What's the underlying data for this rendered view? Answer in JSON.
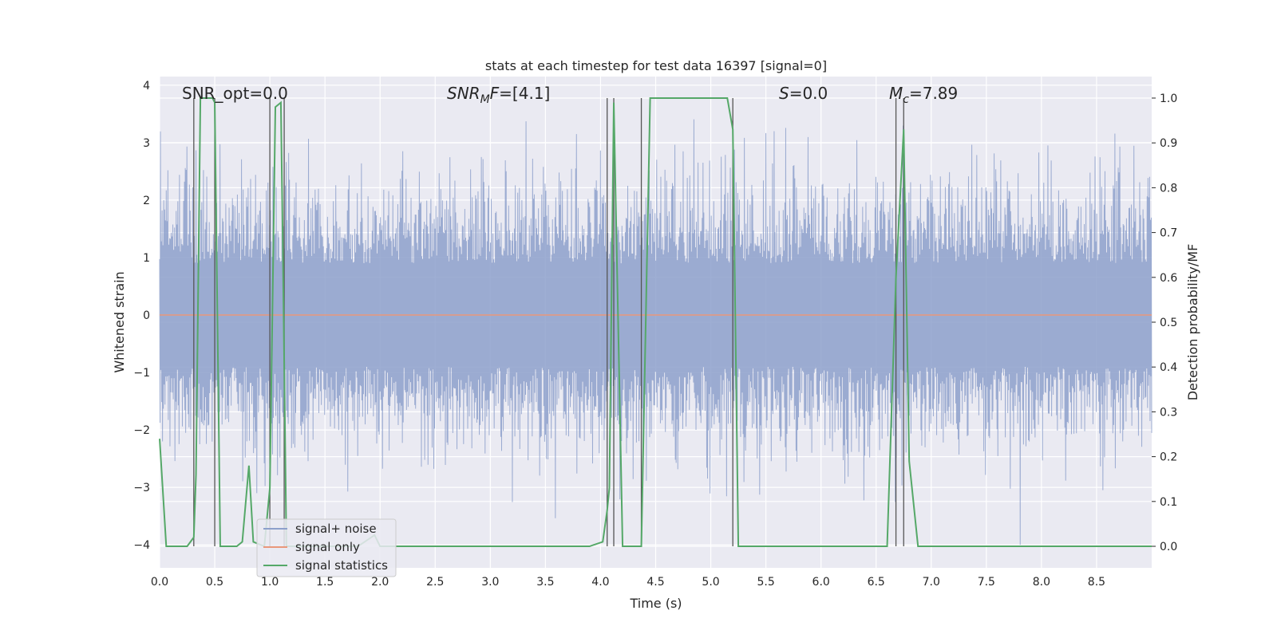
{
  "chart_data": {
    "type": "line",
    "title": "stats at each timestep for test data 16397 [signal=0]",
    "xlabel": "Time (s)",
    "ylabel_left": "Whitened strain",
    "ylabel_right": "Detection probability/MF",
    "xlim": [
      0.0,
      9.0
    ],
    "ylim_left": [
      -4.4,
      4.15
    ],
    "ylim_right": [
      -0.048,
      1.048
    ],
    "x_ticks": [
      0.0,
      0.5,
      1.0,
      1.5,
      2.0,
      2.5,
      3.0,
      3.5,
      4.0,
      4.5,
      5.0,
      5.5,
      6.0,
      6.5,
      7.0,
      7.5,
      8.0,
      8.5
    ],
    "x_tick_labels": [
      "0.0",
      "0.5",
      "1.0",
      "1.5",
      "2.0",
      "2.5",
      "3.0",
      "3.5",
      "4.0",
      "4.5",
      "5.0",
      "5.5",
      "6.0",
      "6.5",
      "7.0",
      "7.5",
      "8.0",
      "8.5"
    ],
    "y_left_ticks": [
      4,
      3,
      2,
      1,
      0,
      -1,
      -2,
      -3,
      -4
    ],
    "y_left_tick_labels": [
      "4",
      "3",
      "2",
      "1",
      "0",
      "−1",
      "−2",
      "−3",
      "−4"
    ],
    "y_right_ticks": [
      1.0,
      0.9,
      0.8,
      0.7,
      0.6,
      0.5,
      0.4,
      0.3,
      0.2,
      0.1,
      0.0
    ],
    "y_right_tick_labels": [
      "1.0",
      "0.9",
      "0.8",
      "0.7",
      "0.6",
      "0.5",
      "0.4",
      "0.3",
      "0.2",
      "0.1",
      "0.0"
    ],
    "grid": true,
    "legend_position": "lower-left",
    "legend": [
      {
        "name": "signal+ noise",
        "color": "#8da0cb"
      },
      {
        "name": "signal only",
        "color": "#e9977a"
      },
      {
        "name": "signal statistics",
        "color": "#55a868"
      }
    ],
    "annotations": {
      "snr_opt": "SNR_opt=0.0",
      "snr_mf": "=[4.1]",
      "snr_mf_base": "SNR",
      "snr_mf_sub": "M",
      "snr_mf_f": "F",
      "s_val": "=0.0",
      "s_sym": "S",
      "mc_val": "=7.89",
      "mc_sym": "M",
      "mc_sub": "c"
    },
    "series": [
      {
        "name": "signal+ noise",
        "axis": "left",
        "description": "dense whitened strain noise, roughly uniform amplitude around 0",
        "typical_range": [
          -2.0,
          2.2
        ],
        "extreme_range": [
          -4.0,
          3.6
        ],
        "color": "#8da0cb"
      },
      {
        "name": "signal only",
        "axis": "left",
        "x": [
          0.0,
          9.0
        ],
        "y": [
          0.0,
          0.0
        ],
        "color": "#e9977a"
      },
      {
        "name": "signal statistics",
        "axis": "right",
        "color": "#55a868",
        "x": [
          0.0,
          0.06,
          0.25,
          0.31,
          0.33,
          0.37,
          0.48,
          0.5,
          0.55,
          0.6,
          0.7,
          0.75,
          0.81,
          0.85,
          0.95,
          1.0,
          1.05,
          1.1,
          1.12,
          1.15,
          1.25,
          1.8,
          1.95,
          2.0,
          3.25,
          3.9,
          4.02,
          4.06,
          4.08,
          4.12,
          4.2,
          4.3,
          4.37,
          4.45,
          5.15,
          5.2,
          5.25,
          5.45,
          6.6,
          6.68,
          6.75,
          6.8,
          6.88,
          7.5,
          8.0,
          9.0
        ],
        "y": [
          0.24,
          0.0,
          0.0,
          0.02,
          0.16,
          1.0,
          1.0,
          0.99,
          0.0,
          0.0,
          0.0,
          0.01,
          0.18,
          0.01,
          0.0,
          0.13,
          0.98,
          0.99,
          0.62,
          0.0,
          0.0,
          0.0,
          0.025,
          0.0,
          0.0,
          0.0,
          0.01,
          0.08,
          0.13,
          0.99,
          0.0,
          0.0,
          0.0,
          1.0,
          1.0,
          0.93,
          0.0,
          0.0,
          0.0,
          0.6,
          0.93,
          0.19,
          0.0,
          0.0,
          0.0,
          0.0
        ]
      }
    ],
    "vertical_lines_x": [
      0.31,
      0.5,
      1.0,
      1.13,
      4.06,
      4.12,
      4.37,
      5.2,
      6.68,
      6.75
    ]
  }
}
